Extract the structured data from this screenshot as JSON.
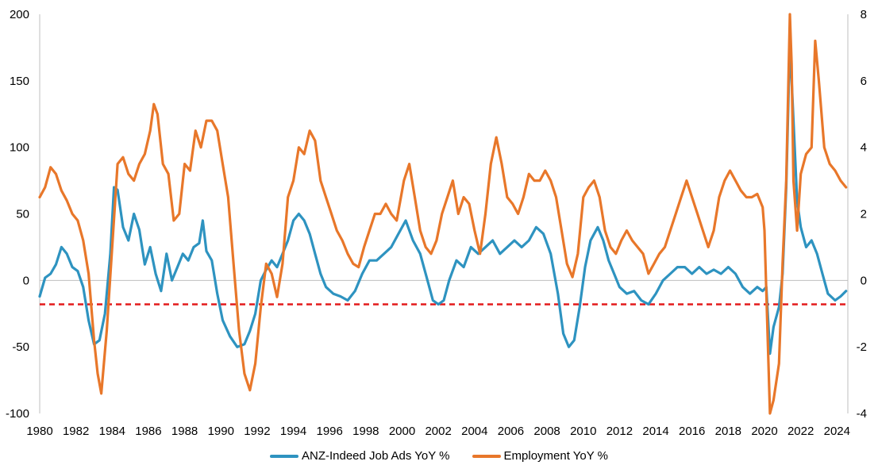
{
  "chart_data": {
    "type": "line",
    "title": "",
    "xlabel": "",
    "ylabel": "",
    "xlim": [
      1980,
      2024.6
    ],
    "ylim_left": [
      -100,
      200
    ],
    "ylim_right": [
      -4,
      8
    ],
    "x_ticks": [
      "1980",
      "1982",
      "1984",
      "1986",
      "1988",
      "1990",
      "1992",
      "1994",
      "1996",
      "1998",
      "2000",
      "2002",
      "2004",
      "2006",
      "2008",
      "2010",
      "2012",
      "2014",
      "2016",
      "2018",
      "2020",
      "2022",
      "2024"
    ],
    "y_ticks_left": [
      "200",
      "150",
      "100",
      "50",
      "0",
      "-50",
      "-100"
    ],
    "y_ticks_right": [
      "8",
      "6",
      "4",
      "2",
      "0",
      "-2",
      "-4"
    ],
    "legend_position": "bottom",
    "grid": false,
    "reference_line": {
      "axis": "left",
      "value": -18,
      "color": "#e31a1c",
      "style": "dashed"
    },
    "series": [
      {
        "name": "ANZ-Indeed Job Ads YoY %",
        "axis": "left",
        "color": "#2e93c0",
        "points": [
          [
            1980.0,
            -12
          ],
          [
            1980.3,
            2
          ],
          [
            1980.6,
            5
          ],
          [
            1980.9,
            12
          ],
          [
            1981.2,
            25
          ],
          [
            1981.5,
            20
          ],
          [
            1981.8,
            10
          ],
          [
            1982.1,
            7
          ],
          [
            1982.4,
            -5
          ],
          [
            1982.7,
            -30
          ],
          [
            1983.0,
            -48
          ],
          [
            1983.3,
            -45
          ],
          [
            1983.6,
            -25
          ],
          [
            1983.9,
            20
          ],
          [
            1984.1,
            70
          ],
          [
            1984.3,
            68
          ],
          [
            1984.6,
            40
          ],
          [
            1984.9,
            30
          ],
          [
            1985.2,
            50
          ],
          [
            1985.5,
            38
          ],
          [
            1985.8,
            12
          ],
          [
            1986.1,
            25
          ],
          [
            1986.4,
            5
          ],
          [
            1986.7,
            -8
          ],
          [
            1987.0,
            20
          ],
          [
            1987.3,
            0
          ],
          [
            1987.6,
            10
          ],
          [
            1987.9,
            20
          ],
          [
            1988.2,
            15
          ],
          [
            1988.5,
            25
          ],
          [
            1988.8,
            28
          ],
          [
            1989.0,
            45
          ],
          [
            1989.2,
            22
          ],
          [
            1989.5,
            15
          ],
          [
            1989.8,
            -10
          ],
          [
            1990.1,
            -30
          ],
          [
            1990.5,
            -42
          ],
          [
            1990.9,
            -50
          ],
          [
            1991.3,
            -48
          ],
          [
            1991.6,
            -38
          ],
          [
            1991.9,
            -25
          ],
          [
            1992.2,
            0
          ],
          [
            1992.5,
            8
          ],
          [
            1992.8,
            15
          ],
          [
            1993.1,
            10
          ],
          [
            1993.4,
            20
          ],
          [
            1993.7,
            30
          ],
          [
            1994.0,
            45
          ],
          [
            1994.3,
            50
          ],
          [
            1994.6,
            45
          ],
          [
            1994.9,
            35
          ],
          [
            1995.2,
            20
          ],
          [
            1995.5,
            5
          ],
          [
            1995.8,
            -5
          ],
          [
            1996.2,
            -10
          ],
          [
            1996.6,
            -12
          ],
          [
            1997.0,
            -15
          ],
          [
            1997.4,
            -8
          ],
          [
            1997.8,
            5
          ],
          [
            1998.2,
            15
          ],
          [
            1998.6,
            15
          ],
          [
            1999.0,
            20
          ],
          [
            1999.4,
            25
          ],
          [
            1999.8,
            35
          ],
          [
            2000.2,
            45
          ],
          [
            2000.6,
            30
          ],
          [
            2001.0,
            20
          ],
          [
            2001.4,
            0
          ],
          [
            2001.7,
            -15
          ],
          [
            2002.0,
            -18
          ],
          [
            2002.3,
            -15
          ],
          [
            2002.6,
            0
          ],
          [
            2003.0,
            15
          ],
          [
            2003.4,
            10
          ],
          [
            2003.8,
            25
          ],
          [
            2004.2,
            20
          ],
          [
            2004.6,
            25
          ],
          [
            2005.0,
            30
          ],
          [
            2005.4,
            20
          ],
          [
            2005.8,
            25
          ],
          [
            2006.2,
            30
          ],
          [
            2006.6,
            25
          ],
          [
            2007.0,
            30
          ],
          [
            2007.4,
            40
          ],
          [
            2007.8,
            35
          ],
          [
            2008.2,
            20
          ],
          [
            2008.6,
            -10
          ],
          [
            2008.9,
            -40
          ],
          [
            2009.2,
            -50
          ],
          [
            2009.5,
            -45
          ],
          [
            2009.8,
            -20
          ],
          [
            2010.1,
            10
          ],
          [
            2010.4,
            30
          ],
          [
            2010.8,
            40
          ],
          [
            2011.1,
            30
          ],
          [
            2011.4,
            15
          ],
          [
            2011.7,
            5
          ],
          [
            2012.0,
            -5
          ],
          [
            2012.4,
            -10
          ],
          [
            2012.8,
            -8
          ],
          [
            2013.2,
            -15
          ],
          [
            2013.6,
            -18
          ],
          [
            2014.0,
            -10
          ],
          [
            2014.4,
            0
          ],
          [
            2014.8,
            5
          ],
          [
            2015.2,
            10
          ],
          [
            2015.6,
            10
          ],
          [
            2016.0,
            5
          ],
          [
            2016.4,
            10
          ],
          [
            2016.8,
            5
          ],
          [
            2017.2,
            8
          ],
          [
            2017.6,
            5
          ],
          [
            2018.0,
            10
          ],
          [
            2018.4,
            5
          ],
          [
            2018.8,
            -5
          ],
          [
            2019.2,
            -10
          ],
          [
            2019.6,
            -5
          ],
          [
            2019.9,
            -8
          ],
          [
            2020.1,
            -5
          ],
          [
            2020.3,
            -55
          ],
          [
            2020.5,
            -35
          ],
          [
            2020.8,
            -20
          ],
          [
            2021.0,
            5
          ],
          [
            2021.2,
            70
          ],
          [
            2021.4,
            180
          ],
          [
            2021.6,
            120
          ],
          [
            2021.8,
            60
          ],
          [
            2022.0,
            40
          ],
          [
            2022.3,
            25
          ],
          [
            2022.6,
            30
          ],
          [
            2022.9,
            20
          ],
          [
            2023.2,
            5
          ],
          [
            2023.5,
            -10
          ],
          [
            2023.9,
            -15
          ],
          [
            2024.2,
            -12
          ],
          [
            2024.5,
            -8
          ]
        ]
      },
      {
        "name": "Employment YoY %",
        "axis": "right",
        "color": "#e8772a",
        "points": [
          [
            1980.0,
            2.5
          ],
          [
            1980.3,
            2.8
          ],
          [
            1980.6,
            3.4
          ],
          [
            1980.9,
            3.2
          ],
          [
            1981.2,
            2.7
          ],
          [
            1981.5,
            2.4
          ],
          [
            1981.8,
            2.0
          ],
          [
            1982.1,
            1.8
          ],
          [
            1982.4,
            1.2
          ],
          [
            1982.7,
            0.2
          ],
          [
            1983.0,
            -1.8
          ],
          [
            1983.2,
            -2.8
          ],
          [
            1983.4,
            -3.4
          ],
          [
            1983.7,
            -1.5
          ],
          [
            1984.0,
            1.0
          ],
          [
            1984.3,
            3.5
          ],
          [
            1984.6,
            3.7
          ],
          [
            1984.9,
            3.2
          ],
          [
            1985.2,
            3.0
          ],
          [
            1985.5,
            3.5
          ],
          [
            1985.8,
            3.8
          ],
          [
            1986.1,
            4.5
          ],
          [
            1986.3,
            5.3
          ],
          [
            1986.5,
            5.0
          ],
          [
            1986.8,
            3.5
          ],
          [
            1987.1,
            3.2
          ],
          [
            1987.4,
            1.8
          ],
          [
            1987.7,
            2.0
          ],
          [
            1988.0,
            3.5
          ],
          [
            1988.3,
            3.3
          ],
          [
            1988.6,
            4.5
          ],
          [
            1988.9,
            4.0
          ],
          [
            1989.2,
            4.8
          ],
          [
            1989.5,
            4.8
          ],
          [
            1989.8,
            4.5
          ],
          [
            1990.1,
            3.5
          ],
          [
            1990.4,
            2.5
          ],
          [
            1990.7,
            0.5
          ],
          [
            1991.0,
            -1.5
          ],
          [
            1991.3,
            -2.8
          ],
          [
            1991.6,
            -3.3
          ],
          [
            1991.9,
            -2.5
          ],
          [
            1992.2,
            -0.8
          ],
          [
            1992.5,
            0.5
          ],
          [
            1992.8,
            0.2
          ],
          [
            1993.1,
            -0.5
          ],
          [
            1993.4,
            0.5
          ],
          [
            1993.7,
            2.5
          ],
          [
            1994.0,
            3.0
          ],
          [
            1994.3,
            4.0
          ],
          [
            1994.6,
            3.8
          ],
          [
            1994.9,
            4.5
          ],
          [
            1995.2,
            4.2
          ],
          [
            1995.5,
            3.0
          ],
          [
            1995.8,
            2.5
          ],
          [
            1996.1,
            2.0
          ],
          [
            1996.4,
            1.5
          ],
          [
            1996.7,
            1.2
          ],
          [
            1997.0,
            0.8
          ],
          [
            1997.3,
            0.5
          ],
          [
            1997.6,
            0.4
          ],
          [
            1997.9,
            1.0
          ],
          [
            1998.2,
            1.5
          ],
          [
            1998.5,
            2.0
          ],
          [
            1998.8,
            2.0
          ],
          [
            1999.1,
            2.3
          ],
          [
            1999.4,
            2.0
          ],
          [
            1999.7,
            1.8
          ],
          [
            2000.1,
            3.0
          ],
          [
            2000.4,
            3.5
          ],
          [
            2000.7,
            2.5
          ],
          [
            2001.0,
            1.5
          ],
          [
            2001.3,
            1.0
          ],
          [
            2001.6,
            0.8
          ],
          [
            2001.9,
            1.2
          ],
          [
            2002.2,
            2.0
          ],
          [
            2002.5,
            2.5
          ],
          [
            2002.8,
            3.0
          ],
          [
            2003.1,
            2.0
          ],
          [
            2003.4,
            2.5
          ],
          [
            2003.7,
            2.3
          ],
          [
            2004.0,
            1.5
          ],
          [
            2004.3,
            0.8
          ],
          [
            2004.6,
            2.0
          ],
          [
            2004.9,
            3.5
          ],
          [
            2005.2,
            4.3
          ],
          [
            2005.5,
            3.5
          ],
          [
            2005.8,
            2.5
          ],
          [
            2006.1,
            2.3
          ],
          [
            2006.4,
            2.0
          ],
          [
            2006.7,
            2.5
          ],
          [
            2007.0,
            3.2
          ],
          [
            2007.3,
            3.0
          ],
          [
            2007.6,
            3.0
          ],
          [
            2007.9,
            3.3
          ],
          [
            2008.2,
            3.0
          ],
          [
            2008.5,
            2.5
          ],
          [
            2008.8,
            1.5
          ],
          [
            2009.1,
            0.5
          ],
          [
            2009.4,
            0.1
          ],
          [
            2009.7,
            0.8
          ],
          [
            2010.0,
            2.5
          ],
          [
            2010.3,
            2.8
          ],
          [
            2010.6,
            3.0
          ],
          [
            2010.9,
            2.5
          ],
          [
            2011.2,
            1.5
          ],
          [
            2011.5,
            1.0
          ],
          [
            2011.8,
            0.8
          ],
          [
            2012.1,
            1.2
          ],
          [
            2012.4,
            1.5
          ],
          [
            2012.7,
            1.2
          ],
          [
            2013.0,
            1.0
          ],
          [
            2013.3,
            0.8
          ],
          [
            2013.6,
            0.2
          ],
          [
            2013.9,
            0.5
          ],
          [
            2014.2,
            0.8
          ],
          [
            2014.5,
            1.0
          ],
          [
            2014.8,
            1.5
          ],
          [
            2015.1,
            2.0
          ],
          [
            2015.4,
            2.5
          ],
          [
            2015.7,
            3.0
          ],
          [
            2016.0,
            2.5
          ],
          [
            2016.3,
            2.0
          ],
          [
            2016.6,
            1.5
          ],
          [
            2016.9,
            1.0
          ],
          [
            2017.2,
            1.5
          ],
          [
            2017.5,
            2.5
          ],
          [
            2017.8,
            3.0
          ],
          [
            2018.1,
            3.3
          ],
          [
            2018.4,
            3.0
          ],
          [
            2018.7,
            2.7
          ],
          [
            2019.0,
            2.5
          ],
          [
            2019.3,
            2.5
          ],
          [
            2019.6,
            2.6
          ],
          [
            2019.9,
            2.2
          ],
          [
            2020.0,
            1.5
          ],
          [
            2020.3,
            -4.0
          ],
          [
            2020.5,
            -3.6
          ],
          [
            2020.8,
            -2.5
          ],
          [
            2021.0,
            0.5
          ],
          [
            2021.2,
            3.0
          ],
          [
            2021.4,
            8.0
          ],
          [
            2021.5,
            6.5
          ],
          [
            2021.6,
            3.0
          ],
          [
            2021.8,
            1.5
          ],
          [
            2022.0,
            3.2
          ],
          [
            2022.3,
            3.8
          ],
          [
            2022.6,
            4.0
          ],
          [
            2022.8,
            7.2
          ],
          [
            2023.0,
            6.0
          ],
          [
            2023.3,
            4.0
          ],
          [
            2023.6,
            3.5
          ],
          [
            2023.9,
            3.3
          ],
          [
            2024.2,
            3.0
          ],
          [
            2024.5,
            2.8
          ]
        ]
      }
    ]
  }
}
